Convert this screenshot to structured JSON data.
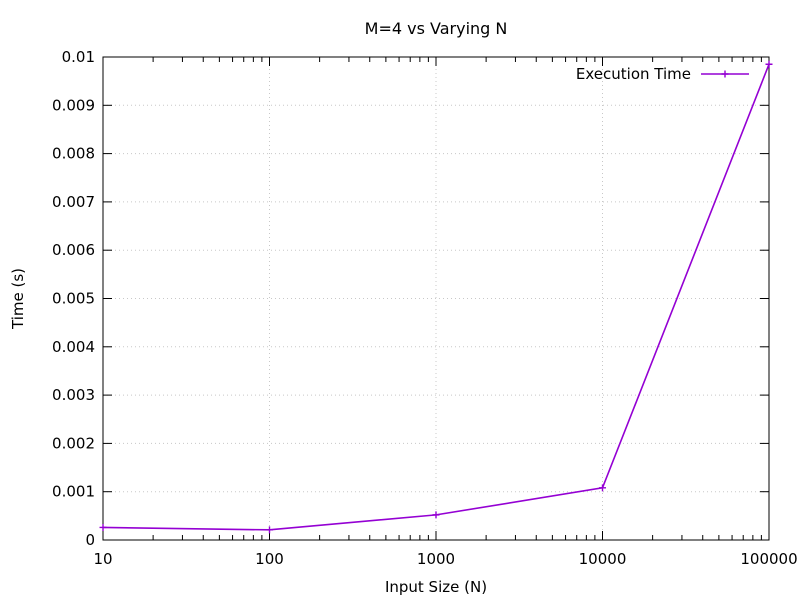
{
  "chart_data": {
    "type": "line",
    "title": "M=4 vs Varying N",
    "xlabel": "Input Size (N)",
    "ylabel": "Time (s)",
    "x_scale": "log10",
    "xlim": [
      10,
      100000
    ],
    "ylim": [
      0,
      0.01
    ],
    "x_ticks": [
      10,
      100,
      1000,
      10000,
      100000
    ],
    "x_tick_labels": [
      "10",
      "100",
      "1000",
      "10000",
      "100000"
    ],
    "y_ticks": [
      0,
      0.001,
      0.002,
      0.003,
      0.004,
      0.005,
      0.006,
      0.007,
      0.008,
      0.009,
      0.01
    ],
    "y_tick_labels": [
      "0",
      "0.001",
      "0.002",
      "0.003",
      "0.004",
      "0.005",
      "0.006",
      "0.007",
      "0.008",
      "0.009",
      "0.01"
    ],
    "grid": true,
    "legend_position": "top-right",
    "series": [
      {
        "name": "Execution Time",
        "color": "#9400d3",
        "marker": "plus",
        "x": [
          10,
          100,
          1000,
          10000,
          100000
        ],
        "y": [
          0.00026,
          0.00021,
          0.00052,
          0.00108,
          0.00985
        ]
      }
    ]
  }
}
